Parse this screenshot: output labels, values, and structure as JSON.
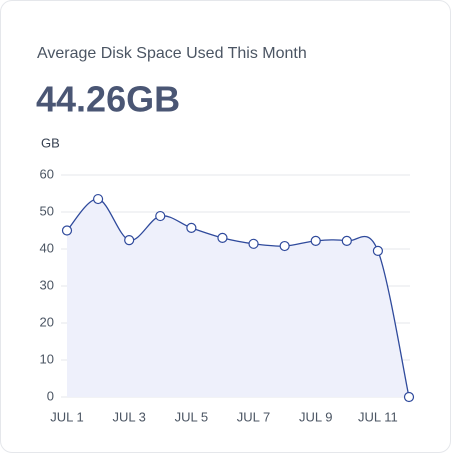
{
  "chart_data": {
    "type": "line",
    "title": "Average Disk Space Used This Month",
    "headline": "44.26GB",
    "y_label": "GB",
    "categories": [
      "JUL 1",
      null,
      "JUL 3",
      null,
      "JUL 5",
      null,
      "JUL 7",
      null,
      "JUL 9",
      null,
      "JUL 11",
      null
    ],
    "values": [
      45,
      53.5,
      42.4,
      48.9,
      45.7,
      43,
      41.4,
      40.8,
      42.2,
      42.2,
      39.5,
      0
    ],
    "color": "#2f4a9c",
    "fill_color": "#eef0fb",
    "ylim": [
      0,
      60
    ],
    "yticks": [
      0,
      10,
      20,
      30,
      40,
      50,
      60
    ],
    "grid": true
  }
}
